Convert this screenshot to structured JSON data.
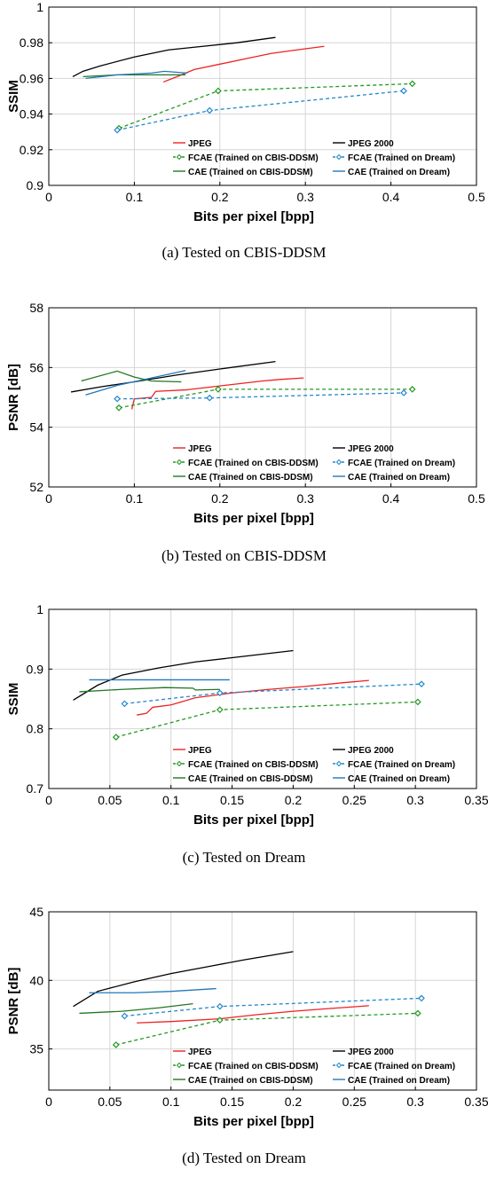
{
  "chart_data": [
    {
      "type": "line",
      "xlabel": "Bits per pixel [bpp]",
      "ylabel": "SSIM",
      "caption": "(a)  Tested on CBIS-DDSM",
      "xlim": [
        0,
        0.5
      ],
      "ylim": [
        0.9,
        1
      ],
      "xticks": [
        "0",
        "0.1",
        "0.2",
        "0.3",
        "0.4",
        "0.5"
      ],
      "yticks": [
        "0.9",
        "0.92",
        "0.94",
        "0.96",
        "0.98",
        "1"
      ],
      "grid": true,
      "legend_position": "bottom-right",
      "series": [
        {
          "name": "JPEG",
          "color": "#ee2222",
          "dash": "solid",
          "marker": "none",
          "points": [
            [
              0.134,
              0.958
            ],
            [
              0.15,
              0.961
            ],
            [
              0.17,
              0.965
            ],
            [
              0.2,
              0.968
            ],
            [
              0.23,
              0.971
            ],
            [
              0.26,
              0.974
            ],
            [
              0.29,
              0.976
            ],
            [
              0.322,
              0.978
            ]
          ]
        },
        {
          "name": "JPEG 2000",
          "color": "#000000",
          "dash": "solid",
          "marker": "none",
          "points": [
            [
              0.028,
              0.961
            ],
            [
              0.04,
              0.964
            ],
            [
              0.06,
              0.967
            ],
            [
              0.1,
              0.972
            ],
            [
              0.14,
              0.976
            ],
            [
              0.18,
              0.978
            ],
            [
              0.22,
              0.98
            ],
            [
              0.265,
              0.983
            ]
          ]
        },
        {
          "name": "FCAE (Trained on CBIS-DDSM)",
          "color": "#229922",
          "dash": "dashed",
          "marker": "diamond",
          "points": [
            [
              0.082,
              0.932
            ],
            [
              0.198,
              0.953
            ],
            [
              0.425,
              0.957
            ]
          ]
        },
        {
          "name": "FCAE (Trained on Dream)",
          "color": "#2288cc",
          "dash": "dashed",
          "marker": "diamond",
          "points": [
            [
              0.08,
              0.931
            ],
            [
              0.188,
              0.942
            ],
            [
              0.415,
              0.953
            ]
          ]
        },
        {
          "name": "CAE (Trained on CBIS-DDSM)",
          "color": "#227722",
          "dash": "solid",
          "marker": "none",
          "points": [
            [
              0.04,
              0.961
            ],
            [
              0.08,
              0.962
            ],
            [
              0.12,
              0.962
            ],
            [
              0.16,
              0.962
            ]
          ]
        },
        {
          "name": "CAE (Trained on Dream)",
          "color": "#2277bb",
          "dash": "solid",
          "marker": "none",
          "points": [
            [
              0.043,
              0.96
            ],
            [
              0.08,
              0.962
            ],
            [
              0.12,
              0.963
            ],
            [
              0.135,
              0.964
            ],
            [
              0.162,
              0.963
            ]
          ]
        }
      ]
    },
    {
      "type": "line",
      "xlabel": "Bits per pixel [bpp]",
      "ylabel": "PSNR [dB]",
      "caption": "(b)  Tested on CBIS-DDSM",
      "xlim": [
        0,
        0.5
      ],
      "ylim": [
        52,
        58
      ],
      "xticks": [
        "0",
        "0.1",
        "0.2",
        "0.3",
        "0.4",
        "0.5"
      ],
      "yticks": [
        "52",
        "54",
        "56",
        "58"
      ],
      "grid": true,
      "legend_position": "bottom-right",
      "series": [
        {
          "name": "JPEG",
          "color": "#ee2222",
          "dash": "solid",
          "marker": "none",
          "points": [
            [
              0.097,
              54.6
            ],
            [
              0.1,
              54.95
            ],
            [
              0.12,
              55.0
            ],
            [
              0.125,
              55.2
            ],
            [
              0.16,
              55.25
            ],
            [
              0.19,
              55.35
            ],
            [
              0.22,
              55.45
            ],
            [
              0.25,
              55.55
            ],
            [
              0.27,
              55.6
            ],
            [
              0.298,
              55.65
            ]
          ]
        },
        {
          "name": "JPEG 2000",
          "color": "#000000",
          "dash": "solid",
          "marker": "none",
          "points": [
            [
              0.026,
              55.18
            ],
            [
              0.06,
              55.35
            ],
            [
              0.1,
              55.52
            ],
            [
              0.15,
              55.75
            ],
            [
              0.2,
              55.95
            ],
            [
              0.265,
              56.2
            ]
          ]
        },
        {
          "name": "FCAE (Trained on CBIS-DDSM)",
          "color": "#229922",
          "dash": "dashed",
          "marker": "diamond",
          "points": [
            [
              0.082,
              54.65
            ],
            [
              0.198,
              55.27
            ],
            [
              0.425,
              55.27
            ]
          ]
        },
        {
          "name": "FCAE (Trained on Dream)",
          "color": "#2288cc",
          "dash": "dashed",
          "marker": "diamond",
          "points": [
            [
              0.08,
              54.95
            ],
            [
              0.188,
              54.98
            ],
            [
              0.415,
              55.15
            ]
          ]
        },
        {
          "name": "CAE (Trained on CBIS-DDSM)",
          "color": "#227722",
          "dash": "solid",
          "marker": "none",
          "points": [
            [
              0.038,
              55.55
            ],
            [
              0.08,
              55.88
            ],
            [
              0.1,
              55.68
            ],
            [
              0.12,
              55.55
            ],
            [
              0.155,
              55.52
            ]
          ]
        },
        {
          "name": "CAE (Trained on Dream)",
          "color": "#2277bb",
          "dash": "solid",
          "marker": "none",
          "points": [
            [
              0.043,
              55.08
            ],
            [
              0.08,
              55.4
            ],
            [
              0.12,
              55.65
            ],
            [
              0.16,
              55.9
            ]
          ]
        }
      ]
    },
    {
      "type": "line",
      "xlabel": "Bits per pixel [bpp]",
      "ylabel": "SSIM",
      "caption": "(c)  Tested on Dream",
      "xlim": [
        0,
        0.35
      ],
      "ylim": [
        0.7,
        1
      ],
      "xticks": [
        "0",
        "0.05",
        "0.1",
        "0.15",
        "0.2",
        "0.25",
        "0.3",
        "0.35"
      ],
      "yticks": [
        "0.7",
        "0.8",
        "0.9",
        "1"
      ],
      "grid": true,
      "legend_position": "bottom-right",
      "series": [
        {
          "name": "JPEG",
          "color": "#ee2222",
          "dash": "solid",
          "marker": "none",
          "points": [
            [
              0.072,
              0.823
            ],
            [
              0.08,
              0.826
            ],
            [
              0.085,
              0.836
            ],
            [
              0.1,
              0.84
            ],
            [
              0.12,
              0.852
            ],
            [
              0.15,
              0.86
            ],
            [
              0.18,
              0.866
            ],
            [
              0.21,
              0.871
            ],
            [
              0.24,
              0.877
            ],
            [
              0.262,
              0.881
            ]
          ]
        },
        {
          "name": "JPEG 2000",
          "color": "#000000",
          "dash": "solid",
          "marker": "none",
          "points": [
            [
              0.02,
              0.848
            ],
            [
              0.04,
              0.873
            ],
            [
              0.06,
              0.89
            ],
            [
              0.09,
              0.902
            ],
            [
              0.12,
              0.912
            ],
            [
              0.15,
              0.919
            ],
            [
              0.2,
              0.931
            ]
          ]
        },
        {
          "name": "FCAE (Trained on CBIS-DDSM)",
          "color": "#229922",
          "dash": "dashed",
          "marker": "diamond",
          "points": [
            [
              0.055,
              0.786
            ],
            [
              0.14,
              0.832
            ],
            [
              0.302,
              0.845
            ]
          ]
        },
        {
          "name": "FCAE (Trained on Dream)",
          "color": "#2288cc",
          "dash": "dashed",
          "marker": "diamond",
          "points": [
            [
              0.062,
              0.842
            ],
            [
              0.14,
              0.86
            ],
            [
              0.305,
              0.875
            ]
          ]
        },
        {
          "name": "CAE (Trained on CBIS-DDSM)",
          "color": "#227722",
          "dash": "solid",
          "marker": "none",
          "points": [
            [
              0.025,
              0.862
            ],
            [
              0.06,
              0.866
            ],
            [
              0.095,
              0.869
            ],
            [
              0.118,
              0.868
            ],
            [
              0.12,
              0.865
            ],
            [
              0.14,
              0.866
            ]
          ]
        },
        {
          "name": "CAE (Trained on Dream)",
          "color": "#2277bb",
          "dash": "solid",
          "marker": "none",
          "points": [
            [
              0.033,
              0.882
            ],
            [
              0.148,
              0.882
            ]
          ]
        }
      ]
    },
    {
      "type": "line",
      "xlabel": "Bits per pixel [bpp]",
      "ylabel": "PSNR [dB]",
      "caption": "(d)  Tested on Dream",
      "xlim": [
        0,
        0.35
      ],
      "ylim": [
        32,
        45
      ],
      "xticks": [
        "0",
        "0.05",
        "0.1",
        "0.15",
        "0.2",
        "0.25",
        "0.3",
        "0.35"
      ],
      "yticks": [
        "35",
        "40",
        "45"
      ],
      "yticks_values": [
        35,
        40,
        45
      ],
      "grid": true,
      "legend_position": "bottom-right",
      "series": [
        {
          "name": "JPEG",
          "color": "#ee2222",
          "dash": "solid",
          "marker": "none",
          "points": [
            [
              0.072,
              36.9
            ],
            [
              0.1,
              37.0
            ],
            [
              0.14,
              37.2
            ],
            [
              0.17,
              37.5
            ],
            [
              0.2,
              37.75
            ],
            [
              0.23,
              37.95
            ],
            [
              0.262,
              38.15
            ]
          ]
        },
        {
          "name": "JPEG 2000",
          "color": "#000000",
          "dash": "solid",
          "marker": "none",
          "points": [
            [
              0.02,
              38.1
            ],
            [
              0.04,
              39.2
            ],
            [
              0.07,
              39.9
            ],
            [
              0.1,
              40.5
            ],
            [
              0.13,
              41.0
            ],
            [
              0.16,
              41.5
            ],
            [
              0.2,
              42.1
            ]
          ]
        },
        {
          "name": "FCAE (Trained on CBIS-DDSM)",
          "color": "#229922",
          "dash": "dashed",
          "marker": "diamond",
          "points": [
            [
              0.055,
              35.3
            ],
            [
              0.14,
              37.1
            ],
            [
              0.302,
              37.6
            ]
          ]
        },
        {
          "name": "FCAE (Trained on Dream)",
          "color": "#2288cc",
          "dash": "dashed",
          "marker": "diamond",
          "points": [
            [
              0.062,
              37.4
            ],
            [
              0.14,
              38.1
            ],
            [
              0.305,
              38.7
            ]
          ]
        },
        {
          "name": "CAE (Trained on CBIS-DDSM)",
          "color": "#227722",
          "dash": "solid",
          "marker": "none",
          "points": [
            [
              0.025,
              37.6
            ],
            [
              0.06,
              37.75
            ],
            [
              0.09,
              38.0
            ],
            [
              0.118,
              38.3
            ]
          ]
        },
        {
          "name": "CAE (Trained on Dream)",
          "color": "#2277bb",
          "dash": "solid",
          "marker": "none",
          "points": [
            [
              0.033,
              39.1
            ],
            [
              0.07,
              39.1
            ],
            [
              0.1,
              39.2
            ],
            [
              0.137,
              39.4
            ]
          ]
        }
      ]
    }
  ]
}
